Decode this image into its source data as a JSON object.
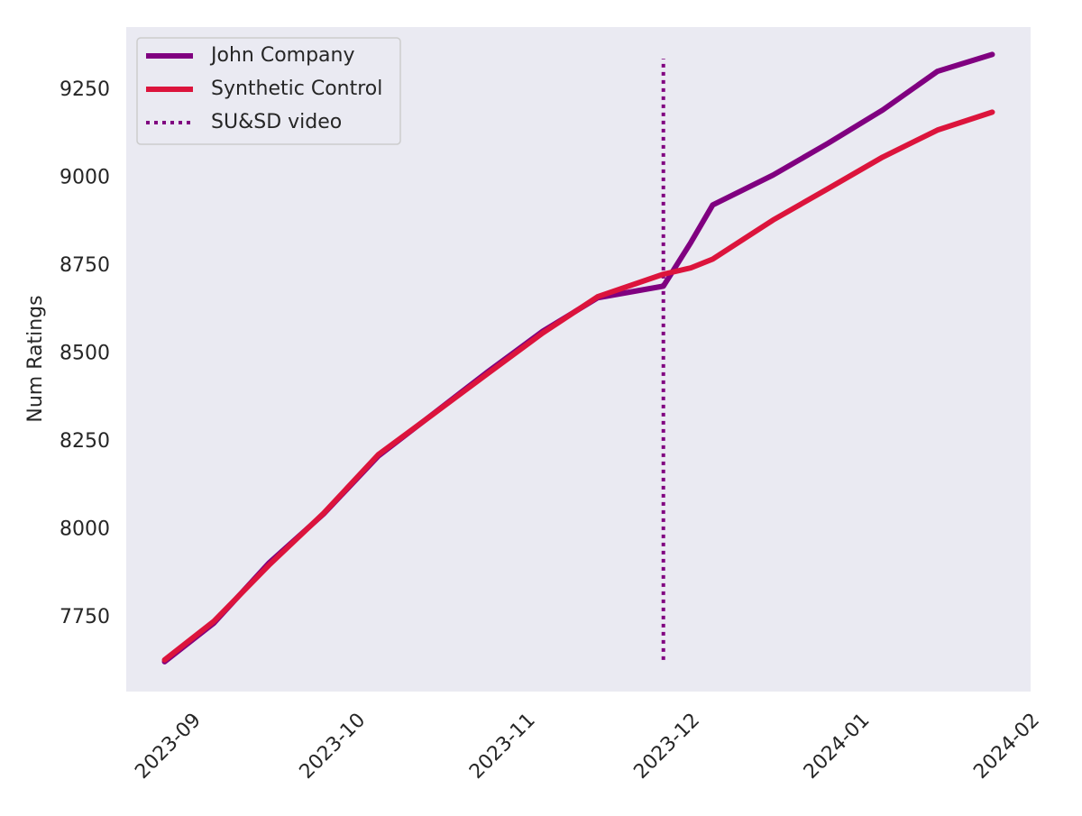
{
  "chart_data": {
    "type": "line",
    "y_label": "Num Ratings",
    "x": [
      "2023-08-27",
      "2023-09-05",
      "2023-09-15",
      "2023-09-25",
      "2023-10-05",
      "2023-10-15",
      "2023-10-25",
      "2023-11-04",
      "2023-11-14",
      "2023-11-26",
      "2023-12-01",
      "2023-12-05",
      "2023-12-16",
      "2023-12-26",
      "2024-01-05",
      "2024-01-15",
      "2024-01-25"
    ],
    "series": [
      {
        "name": "John Company",
        "color": "#800080",
        "values": [
          7625,
          7735,
          7905,
          8045,
          8210,
          8330,
          8450,
          8565,
          8660,
          8693,
          8817,
          8924,
          9009,
          9099,
          9194,
          9304,
          9352
        ]
      },
      {
        "name": "Synthetic Control",
        "color": "#dc143c",
        "values": [
          7630,
          7740,
          7899,
          8047,
          8214,
          8329,
          8445,
          8560,
          8663,
          8727,
          8745,
          8770,
          8881,
          8970,
          9060,
          9137,
          9188
        ]
      }
    ],
    "vline": {
      "name": "SU&SD video",
      "color": "#800080",
      "x": "2023-11-26",
      "ymin": 7630,
      "ymax": 9340
    },
    "xlim": [
      "2023-08-20",
      "2024-02-01"
    ],
    "xticks": [
      "2023-09",
      "2023-10",
      "2023-11",
      "2023-12",
      "2024-01",
      "2024-02"
    ],
    "ylim": [
      7540,
      9430
    ],
    "yticks": [
      7750,
      8000,
      8250,
      8500,
      8750,
      9000,
      9250
    ],
    "grid": false,
    "legend": "upper left",
    "background": "#eaeaf2"
  }
}
